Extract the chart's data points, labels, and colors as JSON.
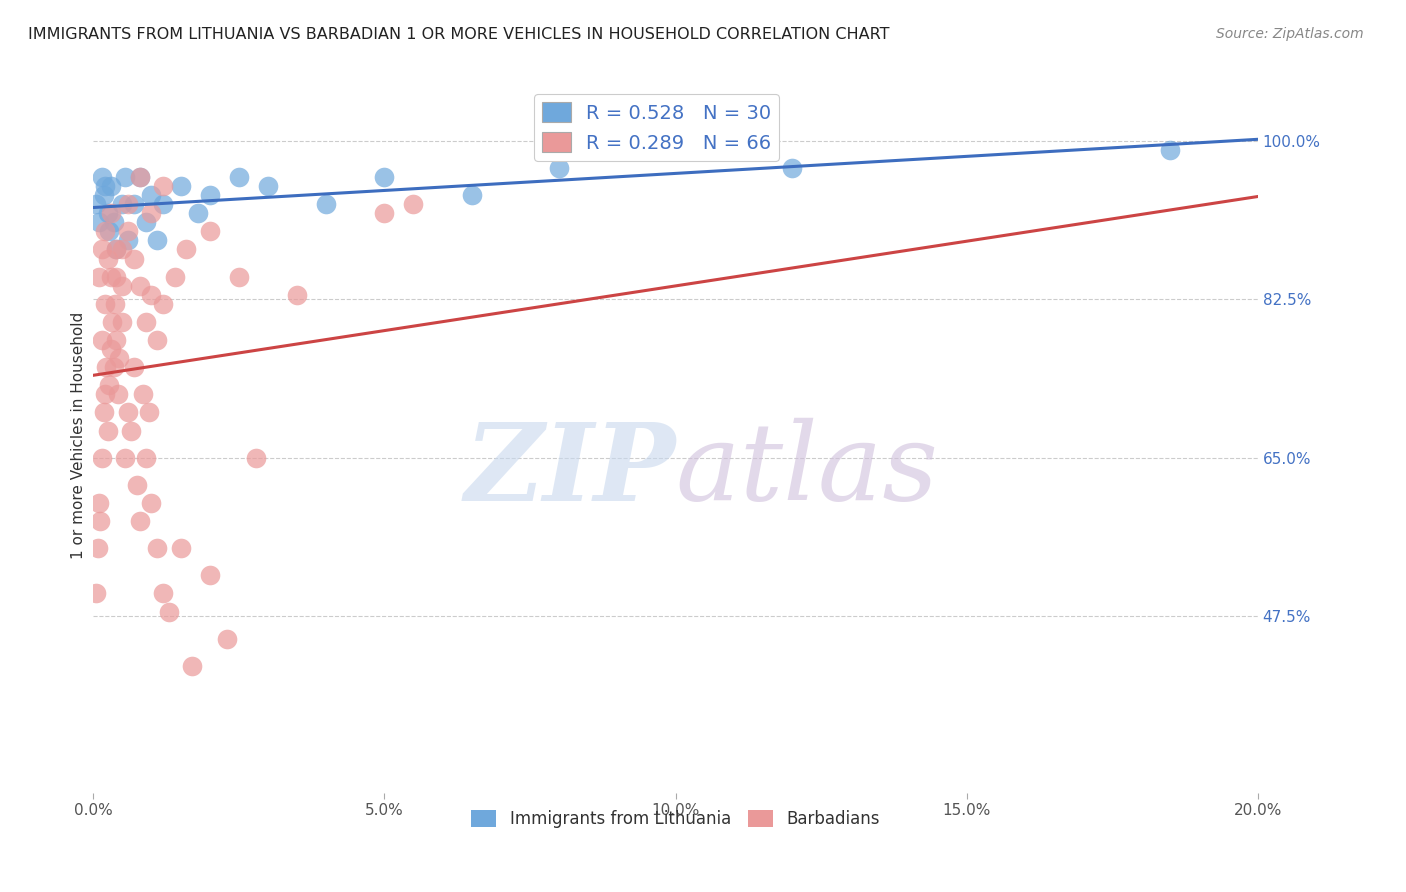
{
  "title": "IMMIGRANTS FROM LITHUANIA VS BARBADIAN 1 OR MORE VEHICLES IN HOUSEHOLD CORRELATION CHART",
  "source": "Source: ZipAtlas.com",
  "xlabel_values": [
    0.0,
    5.0,
    10.0,
    15.0,
    20.0
  ],
  "ylabel": "1 or more Vehicles in Household",
  "ylabel_values": [
    47.5,
    65.0,
    82.5,
    100.0
  ],
  "xlim": [
    0.0,
    20.0
  ],
  "ylim": [
    28.0,
    107.0
  ],
  "blue_R": 0.528,
  "blue_N": 30,
  "pink_R": 0.289,
  "pink_N": 66,
  "blue_color": "#6fa8dc",
  "pink_color": "#ea9999",
  "blue_line_color": "#3d6dbf",
  "pink_line_color": "#cc4444",
  "legend_label_blue": "Immigrants from Lithuania",
  "legend_label_pink": "Barbadians",
  "blue_x": [
    0.05,
    0.1,
    0.15,
    0.18,
    0.2,
    0.25,
    0.28,
    0.3,
    0.35,
    0.4,
    0.5,
    0.55,
    0.6,
    0.7,
    0.8,
    0.9,
    1.0,
    1.1,
    1.2,
    1.5,
    1.8,
    2.0,
    2.5,
    3.0,
    4.0,
    5.0,
    6.5,
    8.0,
    12.0,
    18.5
  ],
  "blue_y": [
    93,
    91,
    96,
    94,
    95,
    92,
    90,
    95,
    91,
    88,
    93,
    96,
    89,
    93,
    96,
    91,
    94,
    89,
    93,
    95,
    92,
    94,
    96,
    95,
    93,
    96,
    94,
    97,
    97,
    99
  ],
  "pink_x": [
    0.05,
    0.08,
    0.1,
    0.12,
    0.15,
    0.18,
    0.2,
    0.22,
    0.25,
    0.28,
    0.3,
    0.32,
    0.35,
    0.38,
    0.4,
    0.42,
    0.45,
    0.5,
    0.55,
    0.6,
    0.65,
    0.7,
    0.75,
    0.8,
    0.85,
    0.9,
    0.95,
    1.0,
    1.1,
    1.2,
    1.3,
    1.5,
    1.7,
    2.0,
    2.3,
    2.8,
    0.1,
    0.15,
    0.2,
    0.25,
    0.3,
    0.4,
    0.5,
    0.6,
    0.8,
    1.0,
    1.2,
    0.15,
    0.2,
    0.3,
    0.4,
    0.5,
    0.6,
    0.7,
    0.8,
    0.9,
    1.0,
    1.1,
    1.2,
    1.4,
    1.6,
    2.0,
    2.5,
    3.5,
    5.0,
    5.5
  ],
  "pink_y": [
    50,
    55,
    60,
    58,
    65,
    70,
    72,
    75,
    68,
    73,
    77,
    80,
    75,
    82,
    78,
    72,
    76,
    80,
    65,
    70,
    68,
    75,
    62,
    58,
    72,
    65,
    70,
    60,
    55,
    50,
    48,
    55,
    42,
    52,
    45,
    65,
    85,
    88,
    90,
    87,
    92,
    85,
    88,
    93,
    96,
    92,
    95,
    78,
    82,
    85,
    88,
    84,
    90,
    87,
    84,
    80,
    83,
    78,
    82,
    85,
    88,
    90,
    85,
    83,
    92,
    93
  ]
}
